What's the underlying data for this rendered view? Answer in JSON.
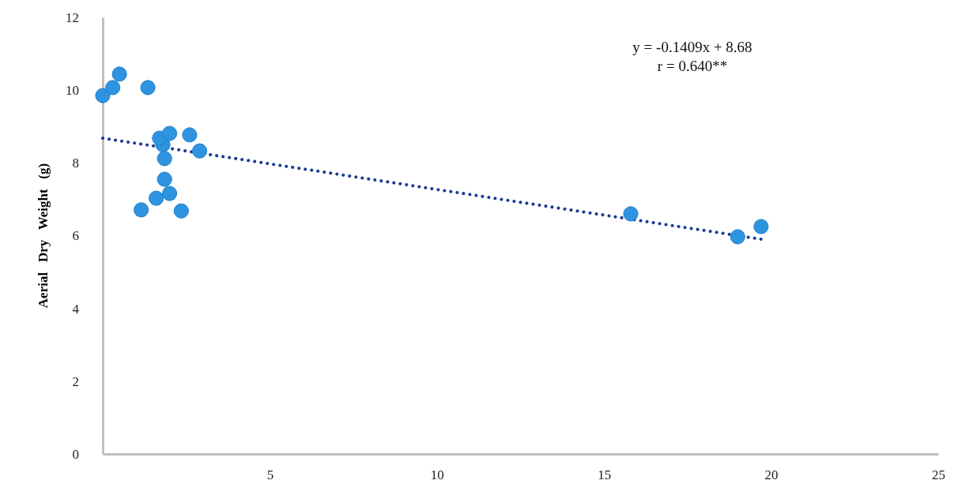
{
  "chart_data": {
    "type": "scatter",
    "ylabel": "Aerial   Dry   Weight   (g)",
    "xlim": [
      0,
      25
    ],
    "xticks": [
      5,
      10,
      15,
      20,
      25
    ],
    "ylim": [
      0,
      12
    ],
    "yticks": [
      0,
      2,
      4,
      6,
      8,
      10,
      12
    ],
    "grid": false,
    "marker": "circle",
    "series": [
      {
        "color": "#2f94e0",
        "x": [
          0,
          0.3,
          0.5,
          1.35,
          1.15,
          1.6,
          2.0,
          1.85,
          1.85,
          1.8,
          1.7,
          2.0,
          2.6,
          2.9,
          2.35,
          15.8,
          19.0,
          19.7
        ],
        "values": [
          9.85,
          10.07,
          10.44,
          10.07,
          6.71,
          7.03,
          7.16,
          7.55,
          8.12,
          8.5,
          8.68,
          8.81,
          8.77,
          8.33,
          6.68,
          6.6,
          5.97,
          6.25
        ]
      },
      {
        "type": "line",
        "color": "#1a3a94",
        "line_style": "dotted",
        "marker": "none",
        "x": [
          0,
          19.8
        ],
        "values": [
          8.68,
          5.89
        ]
      }
    ],
    "annotations": [
      "y = -0.1409x + 8.68",
      "r = 0.640**"
    ]
  }
}
